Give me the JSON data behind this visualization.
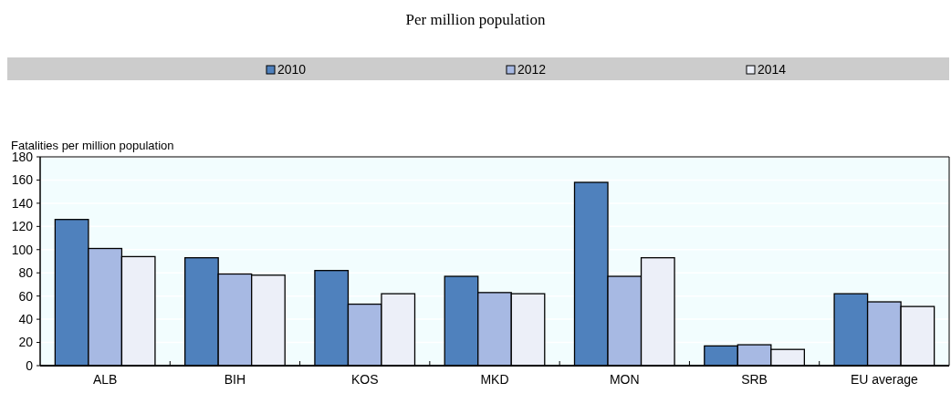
{
  "chart_data": {
    "type": "bar",
    "title": "Per million population",
    "ylabel": "Fatalities per million population",
    "categories": [
      "ALB",
      "BIH",
      "KOS",
      "MKD",
      "MON",
      "SRB",
      "EU average"
    ],
    "series": [
      {
        "name": "2010",
        "color": "#4f81bd",
        "values": [
          126,
          93,
          82,
          77,
          158,
          17,
          62
        ]
      },
      {
        "name": "2012",
        "color": "#a7b9e3",
        "values": [
          101,
          79,
          53,
          63,
          77,
          18,
          55
        ]
      },
      {
        "name": "2014",
        "color": "#eceff8",
        "values": [
          94,
          78,
          62,
          62,
          93,
          14,
          51
        ]
      }
    ],
    "ylim": [
      0,
      180
    ],
    "yticks": [
      0,
      20,
      40,
      60,
      80,
      100,
      120,
      140,
      160,
      180
    ],
    "grid": "y",
    "legend": "top"
  }
}
